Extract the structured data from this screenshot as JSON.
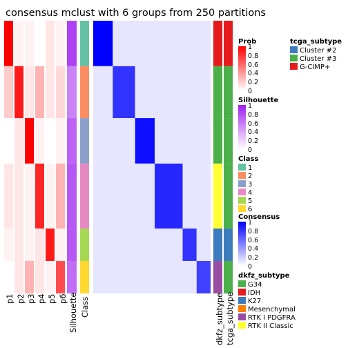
{
  "chart_data": {
    "type": "heatmap",
    "title": "consensus mclust with 6 groups from 250 partitions",
    "column_labels": [
      "p1",
      "p2",
      "p3",
      "p4",
      "p5",
      "p6",
      "Silhouette",
      "Class",
      "dkfz_subtype",
      "tcga_subtype"
    ],
    "group_order": [
      1,
      2,
      3,
      4,
      5,
      6
    ],
    "group_sizes": [
      7,
      8,
      7,
      10,
      5,
      5
    ],
    "class_colors": {
      "1": "#66C2A5",
      "2": "#FC8D62",
      "3": "#8DA0CB",
      "4": "#E78AC3",
      "5": "#A6D854",
      "6": "#FFD92F"
    },
    "silhouette_by_group": [
      0.85,
      0.55,
      0.7,
      0.75,
      0.75,
      0.65
    ],
    "prob_by_group": [
      [
        1.0,
        0.05,
        0.05,
        0.0,
        0.1,
        0.05
      ],
      [
        0.2,
        0.9,
        0.1,
        0.3,
        0.1,
        0.15
      ],
      [
        0.0,
        0.1,
        1.0,
        0.05,
        0.0,
        0.05
      ],
      [
        0.1,
        0.1,
        0.05,
        0.85,
        0.05,
        0.3
      ],
      [
        0.05,
        0.1,
        0.05,
        0.1,
        0.9,
        0.05
      ],
      [
        0.0,
        0.1,
        0.3,
        0.1,
        0.05,
        0.7
      ]
    ],
    "consensus_within_group": [
      1.0,
      0.8,
      0.95,
      0.85,
      0.8,
      0.75
    ],
    "consensus_between_group": 0.1,
    "dkfz_by_group": [
      "IDH",
      "G34",
      "G34",
      "RTK II Classic",
      "K27",
      "RTK I PDGFRA"
    ],
    "tcga_by_group": [
      "G-CIMP+",
      "Cluster #3",
      "Cluster #3",
      "Cluster #3",
      "Cluster #2",
      "Cluster #3"
    ]
  },
  "legends": {
    "tcga": {
      "title": "tcga_subtype",
      "items": [
        {
          "label": "Cluster #2",
          "color": "#3B7BBE"
        },
        {
          "label": "Cluster #3",
          "color": "#4BAF4A"
        },
        {
          "label": "G-CIMP+",
          "color": "#E41A1C"
        }
      ]
    },
    "prob": {
      "title": "Prob",
      "ticks": [
        "1",
        "0.8",
        "0.6",
        "0.4",
        "0.2",
        "0"
      ],
      "color_high": "#FF0000",
      "color_low": "#FFFFFF"
    },
    "silhouette": {
      "title": "Silhouette",
      "ticks": [
        "1",
        "0.8",
        "0.6",
        "0.4",
        "0.2",
        "0"
      ],
      "color_high": "#A020F0",
      "color_low": "#FFFFFF"
    },
    "class": {
      "title": "Class",
      "items": [
        "1",
        "2",
        "3",
        "4",
        "5",
        "6"
      ]
    },
    "consensus": {
      "title": "Consensus",
      "ticks": [
        "1",
        "0.8",
        "0.6",
        "0.4",
        "0.2",
        "0"
      ],
      "color_high": "#0000FF",
      "color_low": "#FFFFFF"
    },
    "dkfz": {
      "title": "dkfz_subtype",
      "items": [
        {
          "label": "G34",
          "color": "#4BAF4A"
        },
        {
          "label": "IDH",
          "color": "#E41A1C"
        },
        {
          "label": "K27",
          "color": "#3B7BBE"
        },
        {
          "label": "Mesenchymal",
          "color": "#FF7F00"
        },
        {
          "label": "RTK I PDGFRA",
          "color": "#984EA3"
        },
        {
          "label": "RTK II Classic",
          "color": "#FFFF33"
        }
      ]
    }
  }
}
